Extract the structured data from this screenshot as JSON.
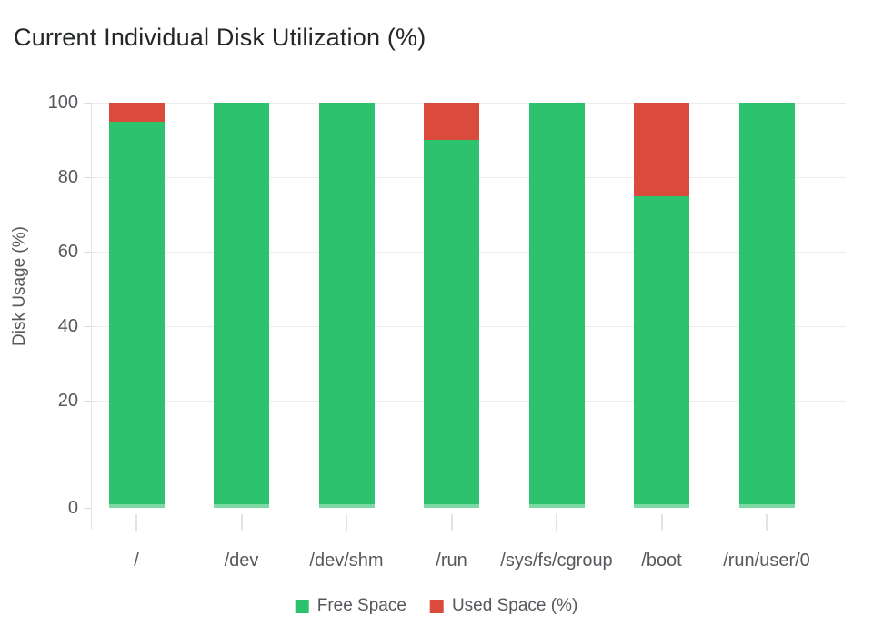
{
  "page": {
    "title": "Current Individual Disk Utilization (%)"
  },
  "chart_data": {
    "type": "bar",
    "stacked": true,
    "title": "Current Individual Disk Utilization (%)",
    "xlabel": "",
    "ylabel": "Disk Usage (%)",
    "ylim": [
      0,
      100
    ],
    "yticks": [
      100,
      80,
      60,
      40,
      20,
      0
    ],
    "grid": true,
    "legend_position": "bottom",
    "categories": [
      "/",
      "/dev",
      "/dev/shm",
      "/run",
      "/sys/fs/cgroup",
      "/boot",
      "/run/user/0"
    ],
    "series": [
      {
        "name": "Free Space",
        "color": "#2dc26d",
        "values": [
          95,
          100,
          100,
          90,
          100,
          75,
          100
        ]
      },
      {
        "name": "Used Space (%)",
        "color": "#db4b3c",
        "values": [
          5,
          0,
          0,
          10,
          0,
          25,
          0
        ]
      }
    ],
    "colors": {
      "free": "#2dc26d",
      "used": "#db4b3c",
      "gridline": "#ececec",
      "axis_line": "#e6e6e6",
      "label_text": "#55585c",
      "title_text": "#24272a"
    }
  }
}
